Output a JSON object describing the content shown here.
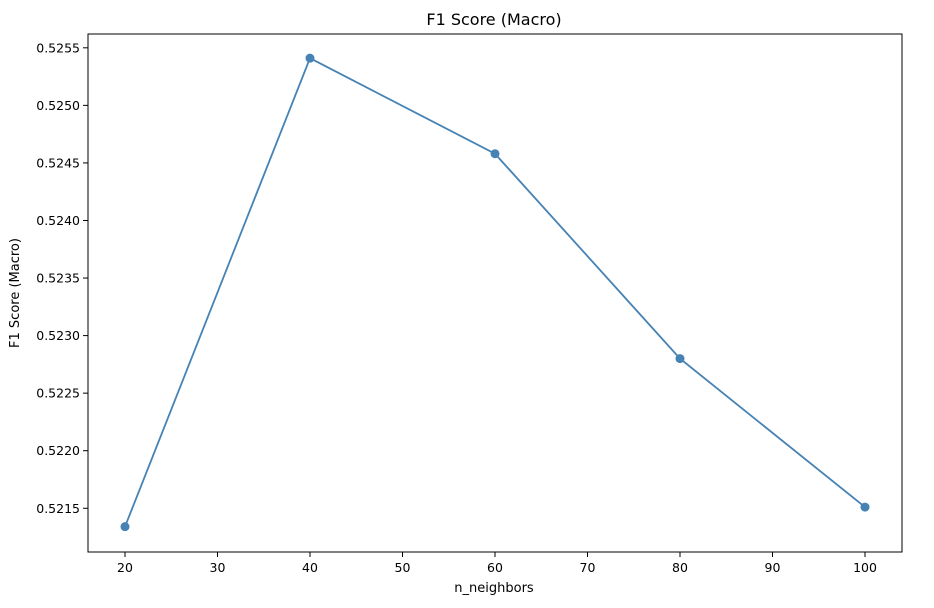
{
  "chart_data": {
    "type": "line",
    "title": "F1 Score (Macro)",
    "xlabel": "n_neighbors",
    "ylabel": "F1 Score (Macro)",
    "x": [
      20,
      40,
      60,
      80,
      100
    ],
    "series": [
      {
        "values": [
          0.52134,
          0.52541,
          0.52458,
          0.5228,
          0.52151
        ],
        "color": "#4682b4",
        "marker": "circle"
      }
    ],
    "xlim": [
      16,
      104
    ],
    "ylim": [
      0.52112,
      0.52562
    ],
    "xticks": [
      20,
      30,
      40,
      50,
      60,
      70,
      80,
      90,
      100
    ],
    "xtick_labels": [
      "20",
      "30",
      "40",
      "50",
      "60",
      "70",
      "80",
      "90",
      "100"
    ],
    "yticks": [
      0.5215,
      0.522,
      0.5225,
      0.523,
      0.5235,
      0.524,
      0.5245,
      0.525,
      0.5255
    ],
    "ytick_labels": [
      "0.5215",
      "0.5220",
      "0.5225",
      "0.5230",
      "0.5235",
      "0.5240",
      "0.5245",
      "0.5250",
      "0.5255"
    ],
    "grid": false,
    "legend": false
  }
}
